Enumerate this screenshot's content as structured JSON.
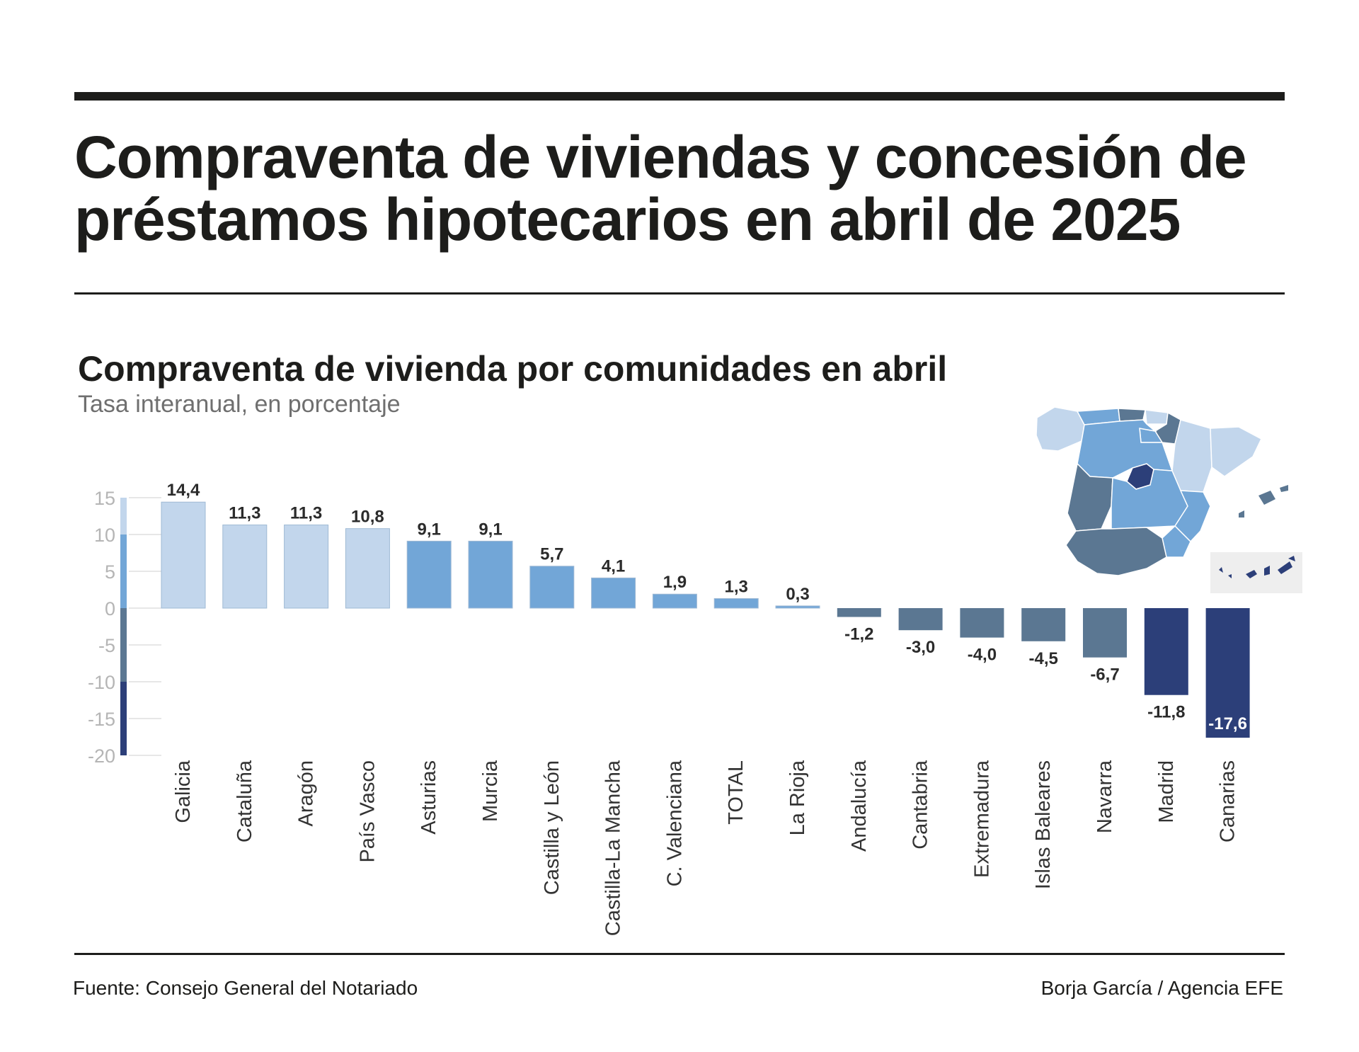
{
  "header": {
    "headline_line1": "Compraventa de viviendas y concesión de",
    "headline_line2": "préstamos hipotecarios en abril de 2025"
  },
  "chart_data": {
    "type": "bar",
    "title": "Compraventa de vivienda por comunidades en abril",
    "subtitle": "Tasa interanual, en porcentaje",
    "categories": [
      "Galicia",
      "Cataluña",
      "Aragón",
      "País Vasco",
      "Asturias",
      "Murcia",
      "Castilla y León",
      "Castilla-La Mancha",
      "C. Valenciana",
      "TOTAL",
      "La Rioja",
      "Andalucía",
      "Cantabria",
      "Extremadura",
      "Islas Baleares",
      "Navarra",
      "Madrid",
      "Canarias"
    ],
    "values": [
      14.4,
      11.3,
      11.3,
      10.8,
      9.1,
      9.1,
      5.7,
      4.1,
      1.9,
      1.3,
      0.3,
      -1.2,
      -3.0,
      -4.0,
      -4.5,
      -6.7,
      -11.8,
      -17.6
    ],
    "value_labels": [
      "14,4",
      "11,3",
      "11,3",
      "10,8",
      "9,1",
      "9,1",
      "5,7",
      "4,1",
      "1,9",
      "1,3",
      "0,3",
      "-1,2",
      "-3,0",
      "-4,0",
      "-4,5",
      "-6,7",
      "-11,8",
      "-17,6"
    ],
    "yticks": [
      15,
      10,
      5,
      0,
      -5,
      -10,
      -15,
      -20
    ],
    "ytick_labels": [
      "15",
      "10",
      "5",
      "0",
      "-5",
      "-10",
      "-15",
      "-20"
    ],
    "ylim": [
      -20,
      15
    ],
    "xlabel": "",
    "ylabel": "",
    "grid": false,
    "legend": "color scale along y-axis",
    "color_scale": [
      {
        "from": 10,
        "to": 15,
        "color": "#c2d6ec"
      },
      {
        "from": 0,
        "to": 10,
        "color": "#72a6d7"
      },
      {
        "from": -10,
        "to": 0,
        "color": "#5b7792"
      },
      {
        "from": -20,
        "to": -10,
        "color": "#2c3f79"
      }
    ]
  },
  "map": {
    "description_label": "Mapa de España por comunidades",
    "colors": {
      "very_light": "#c2d6ec",
      "light": "#72a6d7",
      "mid": "#5b7792",
      "dark": "#2c3f79",
      "inset_bg": "#eeeeee"
    }
  },
  "footer": {
    "source": "Fuente: Consejo General del Notariado",
    "credit": "Borja García / Agencia EFE"
  }
}
